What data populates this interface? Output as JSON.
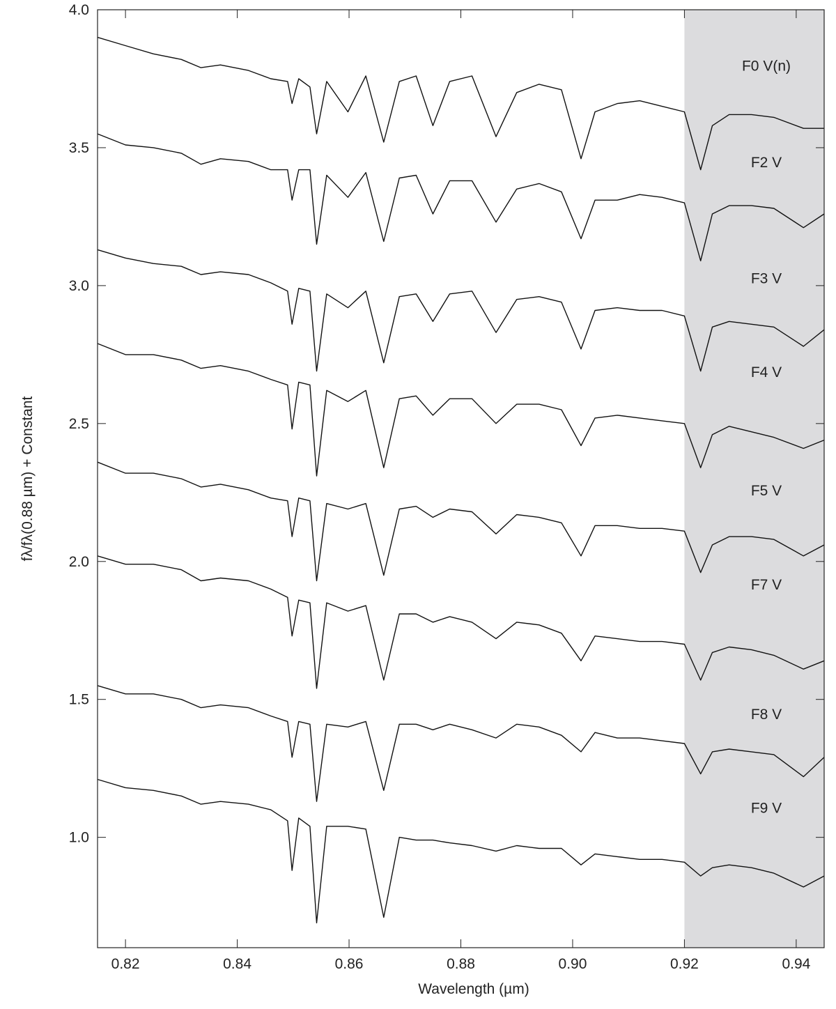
{
  "chart_data": {
    "type": "line",
    "xlabel": "Wavelength (µm)",
    "ylabel": "fλ/fλ(0.88 µm) + Constant",
    "xlim": [
      0.815,
      0.945
    ],
    "ylim": [
      0.6,
      4.0
    ],
    "xticks": [
      0.82,
      0.84,
      0.86,
      0.88,
      {
        "value": 0.9,
        "label": "0.90"
      },
      0.92,
      0.94
    ],
    "yticks": [
      {
        "value": 1,
        "label": "1.0"
      },
      1.5,
      {
        "value": 2,
        "label": "2.0"
      },
      2.5,
      {
        "value": 3,
        "label": "3.0"
      },
      3.5,
      {
        "value": 4,
        "label": "4.0"
      }
    ],
    "shaded_region": [
      0.92,
      0.945
    ],
    "shade_color": "#dcdcde",
    "x": [
      0.815,
      0.82,
      0.825,
      0.83,
      0.8335,
      0.837,
      0.842,
      0.846,
      0.849,
      0.8498,
      0.851,
      0.853,
      0.8542,
      0.856,
      0.8598,
      0.863,
      0.8662,
      0.869,
      0.872,
      0.875,
      0.878,
      0.882,
      0.8863,
      0.89,
      0.894,
      0.898,
      0.9015,
      0.904,
      0.908,
      0.912,
      0.916,
      0.92,
      0.9229,
      0.925,
      0.928,
      0.932,
      0.936,
      0.9413,
      0.945
    ],
    "series": [
      {
        "name": "F0 V(n)",
        "color": "#111111",
        "values": [
          3.9,
          3.87,
          3.84,
          3.82,
          3.79,
          3.8,
          3.78,
          3.75,
          3.74,
          3.66,
          3.75,
          3.72,
          3.55,
          3.74,
          3.63,
          3.76,
          3.52,
          3.74,
          3.76,
          3.58,
          3.74,
          3.76,
          3.54,
          3.7,
          3.73,
          3.71,
          3.46,
          3.63,
          3.66,
          3.67,
          3.65,
          3.63,
          3.42,
          3.58,
          3.62,
          3.62,
          3.61,
          3.57,
          3.57
        ]
      },
      {
        "name": "F2 V",
        "color": "#111111",
        "values": [
          3.55,
          3.51,
          3.5,
          3.48,
          3.44,
          3.46,
          3.45,
          3.42,
          3.42,
          3.31,
          3.42,
          3.42,
          3.15,
          3.4,
          3.32,
          3.41,
          3.16,
          3.39,
          3.4,
          3.26,
          3.38,
          3.38,
          3.23,
          3.35,
          3.37,
          3.34,
          3.17,
          3.31,
          3.31,
          3.33,
          3.32,
          3.3,
          3.09,
          3.26,
          3.29,
          3.29,
          3.28,
          3.21,
          3.26
        ]
      },
      {
        "name": "F3 V",
        "color": "#111111",
        "values": [
          3.13,
          3.1,
          3.08,
          3.07,
          3.04,
          3.05,
          3.04,
          3.01,
          2.98,
          2.86,
          2.99,
          2.98,
          2.69,
          2.97,
          2.92,
          2.98,
          2.72,
          2.96,
          2.97,
          2.87,
          2.97,
          2.98,
          2.83,
          2.95,
          2.96,
          2.94,
          2.77,
          2.91,
          2.92,
          2.91,
          2.91,
          2.89,
          2.69,
          2.85,
          2.87,
          2.86,
          2.85,
          2.78,
          2.84
        ]
      },
      {
        "name": "F4 V",
        "color": "#111111",
        "values": [
          2.79,
          2.75,
          2.75,
          2.73,
          2.7,
          2.71,
          2.69,
          2.66,
          2.64,
          2.48,
          2.65,
          2.64,
          2.31,
          2.62,
          2.58,
          2.62,
          2.34,
          2.59,
          2.6,
          2.53,
          2.59,
          2.59,
          2.5,
          2.57,
          2.57,
          2.55,
          2.42,
          2.52,
          2.53,
          2.52,
          2.51,
          2.5,
          2.34,
          2.46,
          2.49,
          2.47,
          2.45,
          2.41,
          2.44
        ]
      },
      {
        "name": "F5 V",
        "color": "#111111",
        "values": [
          2.36,
          2.32,
          2.32,
          2.3,
          2.27,
          2.28,
          2.26,
          2.23,
          2.22,
          2.09,
          2.23,
          2.22,
          1.93,
          2.21,
          2.19,
          2.21,
          1.95,
          2.19,
          2.2,
          2.16,
          2.19,
          2.18,
          2.1,
          2.17,
          2.16,
          2.14,
          2.02,
          2.13,
          2.13,
          2.12,
          2.12,
          2.11,
          1.96,
          2.06,
          2.09,
          2.09,
          2.08,
          2.02,
          2.06
        ]
      },
      {
        "name": "F7 V",
        "color": "#111111",
        "values": [
          2.02,
          1.99,
          1.99,
          1.97,
          1.93,
          1.94,
          1.93,
          1.9,
          1.87,
          1.73,
          1.86,
          1.85,
          1.54,
          1.85,
          1.82,
          1.84,
          1.57,
          1.81,
          1.81,
          1.78,
          1.8,
          1.78,
          1.72,
          1.78,
          1.77,
          1.74,
          1.64,
          1.73,
          1.72,
          1.71,
          1.71,
          1.7,
          1.57,
          1.67,
          1.69,
          1.68,
          1.66,
          1.61,
          1.64
        ]
      },
      {
        "name": "F8 V",
        "color": "#111111",
        "values": [
          1.55,
          1.52,
          1.52,
          1.5,
          1.47,
          1.48,
          1.47,
          1.44,
          1.42,
          1.29,
          1.42,
          1.41,
          1.13,
          1.41,
          1.4,
          1.42,
          1.17,
          1.41,
          1.41,
          1.39,
          1.41,
          1.39,
          1.36,
          1.41,
          1.4,
          1.37,
          1.31,
          1.38,
          1.36,
          1.36,
          1.35,
          1.34,
          1.23,
          1.31,
          1.32,
          1.31,
          1.3,
          1.22,
          1.29
        ]
      },
      {
        "name": "F9 V",
        "color": "#111111",
        "values": [
          1.21,
          1.18,
          1.17,
          1.15,
          1.12,
          1.13,
          1.12,
          1.1,
          1.06,
          0.88,
          1.07,
          1.04,
          0.69,
          1.04,
          1.04,
          1.03,
          0.71,
          1.0,
          0.99,
          0.99,
          0.98,
          0.97,
          0.95,
          0.97,
          0.96,
          0.96,
          0.9,
          0.94,
          0.93,
          0.92,
          0.92,
          0.91,
          0.86,
          0.89,
          0.9,
          0.89,
          0.87,
          0.82,
          0.86
        ]
      }
    ]
  }
}
